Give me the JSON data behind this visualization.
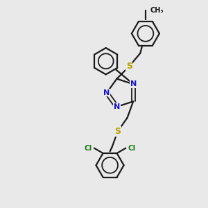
{
  "background_color": "#e9e9e9",
  "bond_color": "#1a1a1a",
  "nitrogen_color": "#1414cc",
  "sulfur_color": "#b8a000",
  "chlorine_color": "#1a7a1a",
  "figsize": [
    3.0,
    3.0
  ],
  "dpi": 100,
  "xlim": [
    0,
    10
  ],
  "ylim": [
    0,
    10
  ]
}
